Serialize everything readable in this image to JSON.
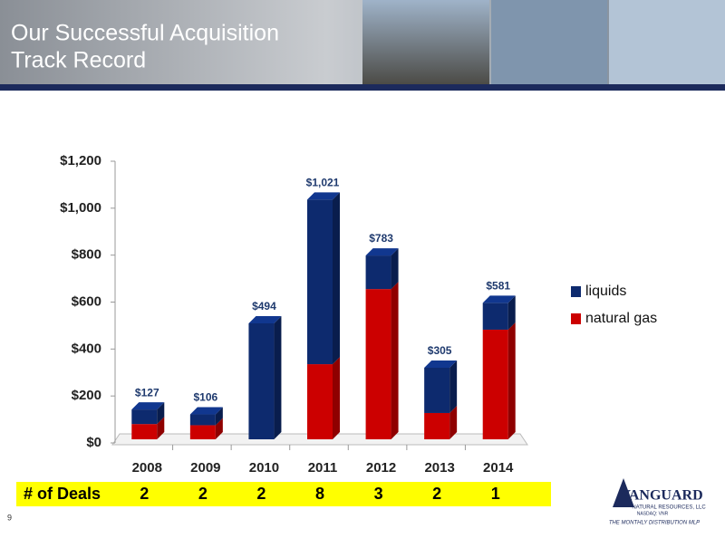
{
  "header": {
    "title": [
      "Our Successful Acquisition",
      "Track Record"
    ]
  },
  "chart_data": {
    "type": "stacked-bar-3d",
    "categories": [
      "2008",
      "2009",
      "2010",
      "2011",
      "2012",
      "2013",
      "2014"
    ],
    "series": [
      {
        "name": "natural gas",
        "color": "#cc0000",
        "values": [
          65,
          60,
          0,
          320,
          640,
          112,
          467
        ]
      },
      {
        "name": "liquids",
        "color": "#0d2a6e",
        "values": [
          62,
          46,
          494,
          701,
          143,
          193,
          114
        ]
      }
    ],
    "totals": [
      127,
      106,
      494,
      1021,
      783,
      305,
      581
    ],
    "total_labels": [
      "$127",
      "$106",
      "$494",
      "$1,021",
      "$783",
      "$305",
      "$581"
    ],
    "ylim": [
      0,
      1200
    ],
    "yticks": [
      {
        "value": 0,
        "label": "$0"
      },
      {
        "value": 200,
        "label": "$200"
      },
      {
        "value": 400,
        "label": "$400"
      },
      {
        "value": 600,
        "label": "$600"
      },
      {
        "value": 800,
        "label": "$800"
      },
      {
        "value": 1000,
        "label": "$1,000"
      },
      {
        "value": 1200,
        "label": "$1,200"
      }
    ],
    "legend": "right"
  },
  "deals": {
    "label": "# of Deals",
    "values": [
      2,
      2,
      2,
      8,
      3,
      2,
      1
    ]
  },
  "footer": {
    "page": "9",
    "logo": {
      "name": "VANGUARD",
      "sub": "NATURAL RESOURCES, LLC",
      "ticker": "NASDAQ: VNR",
      "tagline": "THE MONTHLY DISTRIBUTION MLP"
    }
  }
}
